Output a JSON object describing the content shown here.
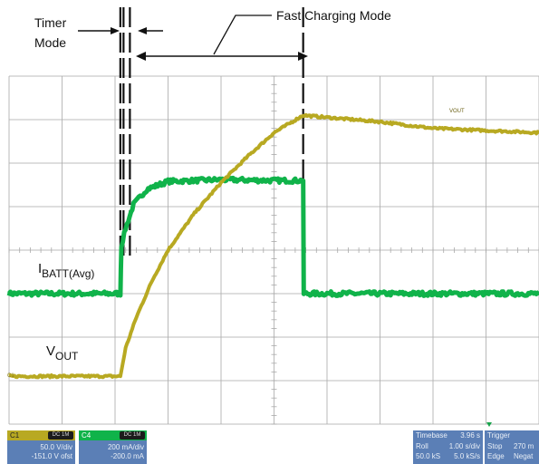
{
  "annotations": {
    "timer_mode_line1": "Timer",
    "timer_mode_line2": "Mode",
    "fast_charging_mode": "Fast Charging Mode",
    "ibatt_main": "I",
    "ibatt_sub": "BATT(Avg)",
    "vout_main": "V",
    "vout_sub": "OUT",
    "trace_tag": "VOUT"
  },
  "colors": {
    "vout_trace": "#b8a922",
    "ibatt_trace": "#10b34a",
    "grid": "#a9a9a9",
    "status_blue": "#5b7fb6",
    "trigger_marker": "#17a34a"
  },
  "status_bar": {
    "c1": {
      "label": "C1",
      "badge": "DC 1M",
      "scale": "50.0 V/div",
      "offset": "-151.0 V ofst"
    },
    "c4": {
      "label": "C4",
      "badge": "DC 1M",
      "scale": "200 mA/div",
      "offset": "-200.0 mA"
    },
    "timebase": {
      "label": "Timebase",
      "value": "3.96 s",
      "mode": "Roll",
      "per_div": "1.00 s/div",
      "samples": "50.0 kS",
      "rate": "5.0 kS/s"
    },
    "trigger": {
      "label": "Trigger",
      "state": "Stop",
      "level": "270 m",
      "type": "Edge",
      "slope": "Negat"
    }
  },
  "chart_data": {
    "type": "line",
    "title": "",
    "xlabel": "",
    "ylabel": "",
    "x_divisions": 10,
    "y_divisions": 8,
    "grid": true,
    "xlim": [
      0,
      10
    ],
    "ylim": [
      -4,
      4
    ],
    "phases": [
      {
        "name": "Timer Mode",
        "start_div": 2.1,
        "end_div": 2.28
      },
      {
        "name": "Fast Charging Mode",
        "start_div": 2.28,
        "end_div": 5.55
      }
    ],
    "series": [
      {
        "name": "VOUT",
        "x": [
          0,
          2.1,
          2.2,
          2.4,
          2.7,
          3.0,
          3.5,
          4.0,
          4.5,
          5.0,
          5.55,
          6.0,
          7.0,
          8.0,
          9.0,
          10.0
        ],
        "y": [
          -2.9,
          -2.9,
          -2.25,
          -1.55,
          -0.7,
          0.0,
          0.85,
          1.55,
          2.15,
          2.7,
          3.1,
          3.05,
          2.95,
          2.8,
          2.75,
          2.7
        ]
      },
      {
        "name": "IBATT(Avg)",
        "x": [
          0,
          2.1,
          2.12,
          2.2,
          2.35,
          2.6,
          3.0,
          4.0,
          5.0,
          5.55,
          5.56,
          6.0,
          8.0,
          10.0
        ],
        "y": [
          -1.0,
          -1.0,
          0.1,
          0.5,
          1.05,
          1.4,
          1.58,
          1.62,
          1.6,
          1.6,
          -1.0,
          -1.0,
          -1.0,
          -1.0
        ]
      }
    ]
  }
}
